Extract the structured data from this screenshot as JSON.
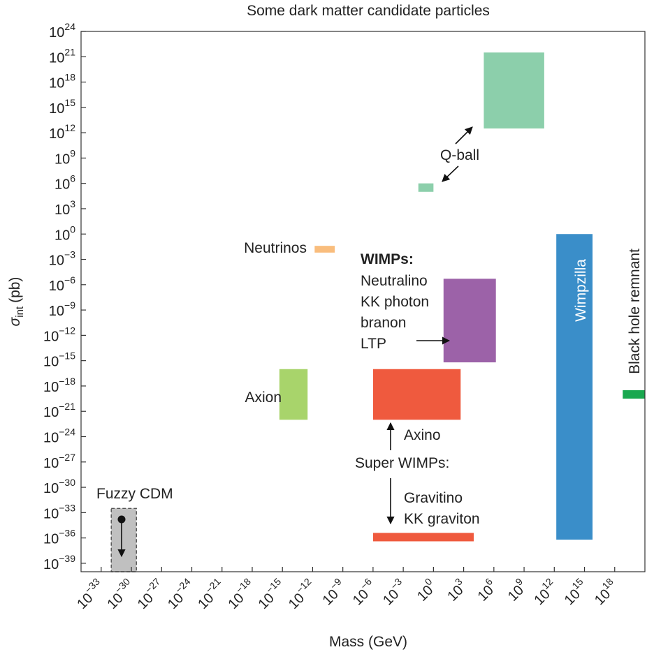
{
  "chart_data": {
    "type": "range-box",
    "title": "Some dark matter candidate particles",
    "xlabel": "Mass (GeV)",
    "ylabel_base": "σ",
    "ylabel_sub": "int",
    "ylabel_unit": "(pb)",
    "x_scale": "log",
    "y_scale": "log",
    "x_exponent_range": [
      -35,
      21
    ],
    "y_exponent_range": [
      -40,
      24
    ],
    "x_tick_exponents": [
      -33,
      -30,
      -27,
      -24,
      -21,
      -18,
      -15,
      -12,
      -9,
      -6,
      -3,
      0,
      3,
      6,
      9,
      12,
      15,
      18
    ],
    "y_tick_exponents": [
      -39,
      -36,
      -33,
      -30,
      -27,
      -24,
      -21,
      -18,
      -15,
      -12,
      -9,
      -6,
      -3,
      0,
      3,
      6,
      9,
      12,
      15,
      18,
      21,
      24
    ],
    "tick_base": "10",
    "grid": false,
    "regions": [
      {
        "id": "qball-large",
        "x_exp": [
          5,
          11
        ],
        "y_exp": [
          12.5,
          21.5
        ],
        "color": "#8ccfab"
      },
      {
        "id": "qball-small",
        "x_exp": [
          -1.5,
          0
        ],
        "y_exp": [
          5,
          6
        ],
        "color": "#8ccfab"
      },
      {
        "id": "neutrinos",
        "x_exp": [
          -11.8,
          -9.8
        ],
        "y_exp": [
          -2.2,
          -1.4
        ],
        "color": "#f9bd7d"
      },
      {
        "id": "wimps",
        "x_exp": [
          1,
          6.2
        ],
        "y_exp": [
          -15.2,
          -5.3
        ],
        "color": "#9c62a8"
      },
      {
        "id": "axion",
        "x_exp": [
          -15.3,
          -12.5
        ],
        "y_exp": [
          -22,
          -16
        ],
        "color": "#a8d46b"
      },
      {
        "id": "axino",
        "x_exp": [
          -6,
          2.7
        ],
        "y_exp": [
          -22,
          -16
        ],
        "color": "#ef5a3e"
      },
      {
        "id": "gravitino",
        "x_exp": [
          -6,
          4
        ],
        "y_exp": [
          -36.4,
          -35.4
        ],
        "color": "#ef5a3e"
      },
      {
        "id": "wimpzilla",
        "x_exp": [
          12.2,
          15.8
        ],
        "y_exp": [
          -36.2,
          0
        ],
        "color": "#3a8ec9"
      },
      {
        "id": "black-hole-remnant",
        "x_exp": [
          18.8,
          21
        ],
        "y_exp": [
          -19.5,
          -18.5
        ],
        "color": "#19a84f"
      },
      {
        "id": "fuzzy-cdm",
        "x_exp": [
          -32,
          -29.5
        ],
        "y_exp": [
          -40,
          -32.5
        ],
        "color": "#c0c0c0",
        "dashed": true
      }
    ],
    "annotations": [
      {
        "id": "neutrinos",
        "text": "Neutrinos"
      },
      {
        "id": "qball",
        "text": "Q-ball"
      },
      {
        "id": "wimps-head",
        "text": "WIMPs:"
      },
      {
        "id": "wimps-1",
        "text": "Neutralino"
      },
      {
        "id": "wimps-2",
        "text": "KK photon"
      },
      {
        "id": "wimps-3",
        "text": "branon"
      },
      {
        "id": "wimps-4",
        "text": "LTP"
      },
      {
        "id": "axion",
        "text": "Axion"
      },
      {
        "id": "axino",
        "text": "Axino"
      },
      {
        "id": "super-wimps",
        "text": "Super WIMPs:"
      },
      {
        "id": "gravitino",
        "text": "Gravitino"
      },
      {
        "id": "kk-graviton",
        "text": "KK graviton"
      },
      {
        "id": "fuzzy",
        "text": "Fuzzy CDM"
      },
      {
        "id": "wimpzilla",
        "text": "Wimpzilla"
      },
      {
        "id": "black-hole",
        "text": "Black hole remnant"
      }
    ]
  }
}
